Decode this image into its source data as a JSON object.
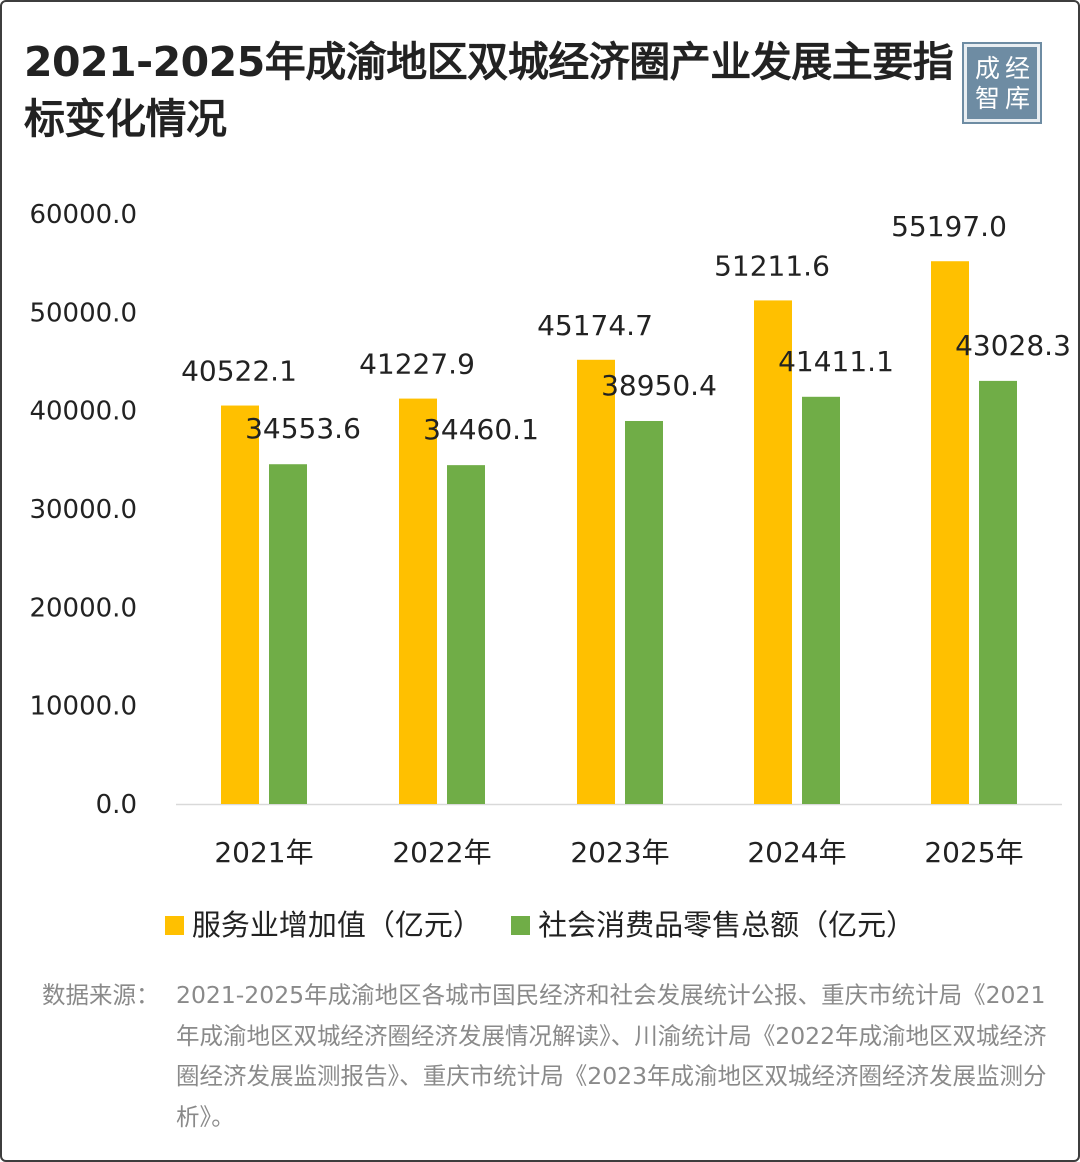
{
  "title": "2021-2025年成渝地区双城经济圈产业发展主要指标变化情况",
  "logo": {
    "text": [
      "成",
      "经",
      "智",
      "库"
    ],
    "color": "#6e8ca3"
  },
  "chart_data": {
    "type": "bar",
    "title": "2021-2025年成渝地区双城经济圈产业发展主要指标变化情况",
    "categories": [
      "2021年",
      "2022年",
      "2023年",
      "2024年",
      "2025年"
    ],
    "series": [
      {
        "name": "服务业增加值（亿元）",
        "color": "#ffc000",
        "values": [
          40522.1,
          41227.9,
          45174.7,
          51211.6,
          55197.0
        ],
        "labels": [
          "40522.1",
          "41227.9",
          "45174.7",
          "51211.6",
          "55197.0"
        ]
      },
      {
        "name": "社会消费品零售总额（亿元）",
        "color": "#70ad47",
        "values": [
          34553.6,
          34460.1,
          38950.4,
          41411.1,
          43028.3
        ],
        "labels": [
          "34553.6",
          "34460.1",
          "38950.4",
          "41411.1",
          "43028.3"
        ]
      }
    ],
    "yticks": [
      "0.0",
      "10000.0",
      "20000.0",
      "30000.0",
      "40000.0",
      "50000.0",
      "60000.0"
    ],
    "ylim": [
      0,
      60000
    ],
    "grid": false,
    "legend_position": "bottom"
  },
  "source": {
    "label": "数据来源：",
    "text": "2021-2025年成渝地区各城市国民经济和社会发展统计公报、重庆市统计局《2021年成渝地区双城经济圈经济发展情况解读》、川渝统计局《2022年成渝地区双城经济圈经济发展监测报告》、重庆市统计局《2023年成渝地区双城经济圈经济发展监测分析》。"
  }
}
